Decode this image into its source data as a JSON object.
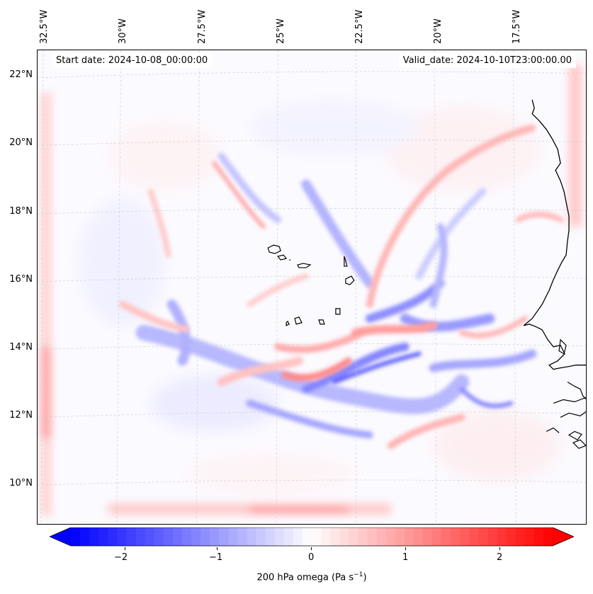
{
  "map": {
    "start_label": "Start date: 2024-10-08_00:00:00",
    "valid_label": "Valid_date: 2024-10-10T23:00:00.00",
    "lon_labels": [
      "32.5°W",
      "30°W",
      "27.5°W",
      "25°W",
      "22.5°W",
      "20°W",
      "17.5°W"
    ],
    "lat_labels": [
      "22°N",
      "20°N",
      "18°N",
      "16°N",
      "14°N",
      "12°N",
      "10°N"
    ],
    "coastline_color": "#000000",
    "gridline_color": "#c8c8c8",
    "colormap": "bwr"
  },
  "colorbar": {
    "ticks": [
      "−2",
      "−1",
      "0",
      "1",
      "2"
    ],
    "label_prefix": "200 hPa omega (Pa s",
    "label_exp": "−1",
    "label_suffix": ")",
    "min": -2.6,
    "max": 2.6,
    "extend": "both",
    "min_color": "#0000ff",
    "mid_color": "#ffffff",
    "max_color": "#ff0000"
  }
}
